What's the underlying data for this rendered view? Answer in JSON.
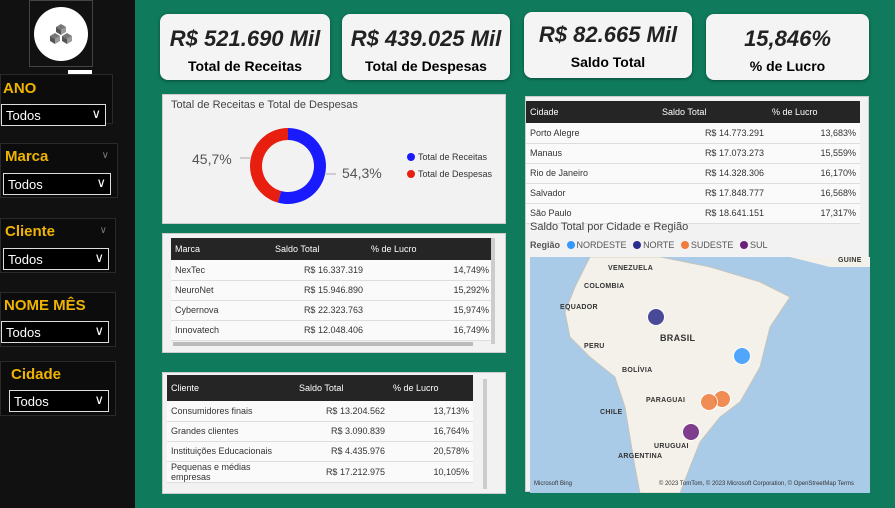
{
  "sidebar": {
    "more_label": "···",
    "slicers": [
      {
        "title": "ANO",
        "value": "Todos"
      },
      {
        "title": "Marca",
        "value": "Todos"
      },
      {
        "title": "Cliente",
        "value": "Todos"
      },
      {
        "title": "NOME MÊS",
        "value": "Todos"
      },
      {
        "title": "Cidade",
        "value": "Todos"
      }
    ]
  },
  "kpis": [
    {
      "value": "R$ 521.690 Mil",
      "label": "Total de Receitas"
    },
    {
      "value": "R$ 439.025 Mil",
      "label": "Total de Despesas"
    },
    {
      "value": "R$ 82.665 Mil",
      "label": "Saldo Total"
    },
    {
      "value": "15,846%",
      "label": "% de Lucro"
    }
  ],
  "donut": {
    "title": "Total de Receitas e Total de Despesas",
    "left_pct": "45,7%",
    "right_pct": "54,3%",
    "legend": [
      {
        "label": "Total de Receitas",
        "color": "#1a1aff"
      },
      {
        "label": "Total de Despesas",
        "color": "#e81e0e"
      }
    ]
  },
  "chart_data": {
    "type": "pie",
    "categories": [
      "Total de Receitas",
      "Total de Despesas"
    ],
    "values": [
      54.3,
      45.7
    ],
    "title": "Total de Receitas e Total de Despesas",
    "legend": "right"
  },
  "marca_table": {
    "headers": [
      "Marca",
      "Saldo Total",
      "% de Lucro"
    ],
    "rows": [
      [
        "NexTec",
        "R$ 16.337.319",
        "14,749%"
      ],
      [
        "NeuroNet",
        "R$ 15.946.890",
        "15,292%"
      ],
      [
        "Cybernova",
        "R$ 22.323.763",
        "15,974%"
      ],
      [
        "Innovatech",
        "R$ 12.048.406",
        "16,749%"
      ]
    ]
  },
  "cliente_table": {
    "headers": [
      "Cliente",
      "Saldo Total",
      "% de Lucro"
    ],
    "rows": [
      [
        "Consumidores finais",
        "R$ 13.204.562",
        "13,713%"
      ],
      [
        "Grandes clientes",
        "R$ 3.090.839",
        "16,764%"
      ],
      [
        "Instituições Educacionais",
        "R$ 4.435.976",
        "20,578%"
      ],
      [
        "Pequenas e médias empresas",
        "R$ 17.212.975",
        "10,105%"
      ]
    ]
  },
  "cidade_table": {
    "headers": [
      "Cidade",
      "Saldo Total",
      "% de Lucro"
    ],
    "rows": [
      [
        "Porto Alegre",
        "R$ 14.773.291",
        "13,683%"
      ],
      [
        "Manaus",
        "R$ 17.073.273",
        "15,559%"
      ],
      [
        "Rio de Janeiro",
        "R$ 14.328.306",
        "16,170%"
      ],
      [
        "Salvador",
        "R$ 17.848.777",
        "16,568%"
      ],
      [
        "São Paulo",
        "R$ 18.641.151",
        "17,317%"
      ]
    ]
  },
  "map": {
    "title": "Saldo Total por Cidade e Região",
    "legend_title": "Região",
    "legend": [
      {
        "label": "NORDESTE",
        "color": "#3399ff"
      },
      {
        "label": "NORTE",
        "color": "#2b2d8c"
      },
      {
        "label": "SUDESTE",
        "color": "#f07c3c"
      },
      {
        "label": "SUL",
        "color": "#6b1f7c"
      }
    ],
    "labels": [
      "VENEZUELA",
      "COLOMBIA",
      "GUINE",
      "EQUADOR",
      "BRASIL",
      "PERU",
      "BOLÍVIA",
      "PARAGUAI",
      "CHILE",
      "URUGUAI",
      "ARGENTINA"
    ],
    "attribution": "© 2023 TomTom, © 2023 Microsoft Corporation, © OpenStreetMap  Terms",
    "bing": "Microsoft Bing"
  }
}
